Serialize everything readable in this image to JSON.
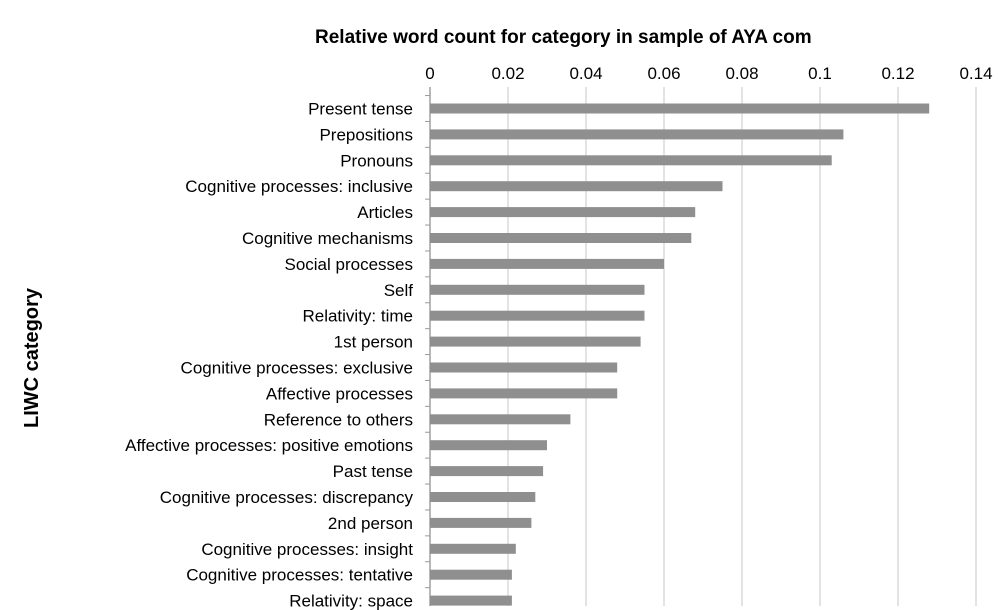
{
  "chart_data": {
    "type": "bar",
    "orientation": "horizontal",
    "title": "Relative word count for category in sample of AYA com",
    "ylabel": "LIWC category",
    "xlabel": "",
    "xlim": [
      0,
      0.14
    ],
    "x_ticks": [
      "0",
      "0.02",
      "0.04",
      "0.06",
      "0.08",
      "0.1",
      "0.12",
      "0.14"
    ],
    "x_axis_position": "top",
    "grid": "vertical",
    "bar_color": "#8f8f8f",
    "categories": [
      "Present tense",
      "Prepositions",
      "Pronouns",
      "Cognitive processes: inclusive",
      "Articles",
      "Cognitive mechanisms",
      "Social processes",
      "Self",
      "Relativity: time",
      "1st person",
      "Cognitive processes: exclusive",
      "Affective processes",
      "Reference to others",
      "Affective processes: positive emotions",
      "Past tense",
      "Cognitive processes: discrepancy",
      "2nd person",
      "Cognitive processes: insight",
      "Cognitive processes: tentative",
      "Relativity: space"
    ],
    "values": [
      0.128,
      0.106,
      0.103,
      0.075,
      0.068,
      0.067,
      0.06,
      0.055,
      0.055,
      0.054,
      0.048,
      0.048,
      0.036,
      0.03,
      0.029,
      0.027,
      0.026,
      0.022,
      0.021,
      0.021
    ]
  }
}
